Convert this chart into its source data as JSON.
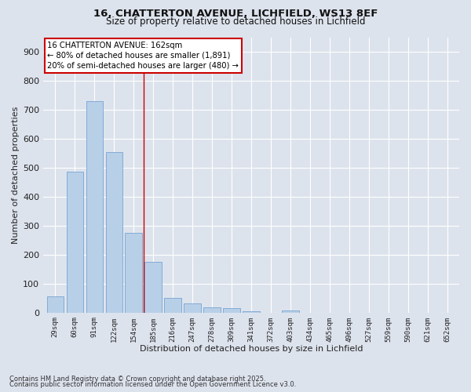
{
  "title_line1": "16, CHATTERTON AVENUE, LICHFIELD, WS13 8EF",
  "title_line2": "Size of property relative to detached houses in Lichfield",
  "xlabel": "Distribution of detached houses by size in Lichfield",
  "ylabel": "Number of detached properties",
  "background_color": "#dde3ed",
  "plot_bg_color": "#dde3ed",
  "bar_color": "#b8cfe8",
  "bar_edge_color": "#6699cc",
  "vline_color": "#cc0000",
  "vline_x": 4.5,
  "annotation_text": "16 CHATTERTON AVENUE: 162sqm\n← 80% of detached houses are smaller (1,891)\n20% of semi-detached houses are larger (480) →",
  "annotation_box_color": "#cc0000",
  "annotation_text_color": "#000000",
  "categories": [
    "29sqm",
    "60sqm",
    "91sqm",
    "122sqm",
    "154sqm",
    "185sqm",
    "216sqm",
    "247sqm",
    "278sqm",
    "309sqm",
    "341sqm",
    "372sqm",
    "403sqm",
    "434sqm",
    "465sqm",
    "496sqm",
    "527sqm",
    "559sqm",
    "590sqm",
    "621sqm",
    "652sqm"
  ],
  "values": [
    55,
    485,
    730,
    555,
    275,
    175,
    50,
    32,
    18,
    15,
    5,
    0,
    7,
    0,
    0,
    0,
    0,
    0,
    0,
    0,
    0
  ],
  "ylim": [
    0,
    950
  ],
  "yticks": [
    0,
    100,
    200,
    300,
    400,
    500,
    600,
    700,
    800,
    900
  ],
  "footnote1": "Contains HM Land Registry data © Crown copyright and database right 2025.",
  "footnote2": "Contains public sector information licensed under the Open Government Licence v3.0."
}
